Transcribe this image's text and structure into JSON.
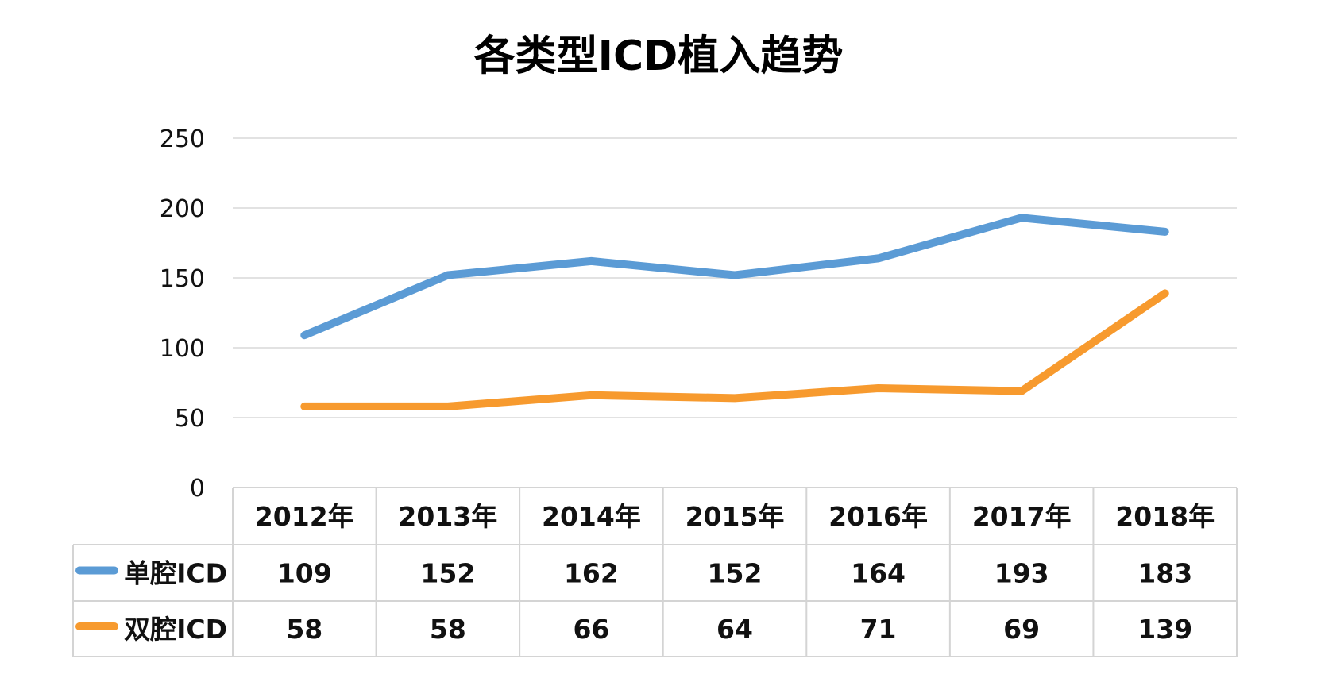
{
  "chart_data": {
    "type": "line",
    "title": "各类型ICD植入趋势",
    "categories": [
      "2012年",
      "2013年",
      "2014年",
      "2015年",
      "2016年",
      "2017年",
      "2018年"
    ],
    "series": [
      {
        "name": "单腔ICD",
        "values": [
          109,
          152,
          162,
          152,
          164,
          193,
          183
        ],
        "color": "#5b9bd5"
      },
      {
        "name": "双腔ICD",
        "values": [
          58,
          58,
          66,
          64,
          71,
          69,
          139
        ],
        "color": "#f79a2e"
      }
    ],
    "ylim": [
      0,
      250
    ],
    "yticks": [
      0,
      50,
      100,
      150,
      200,
      250
    ],
    "grid": true,
    "legend": "data table",
    "xlabel": "",
    "ylabel": ""
  }
}
